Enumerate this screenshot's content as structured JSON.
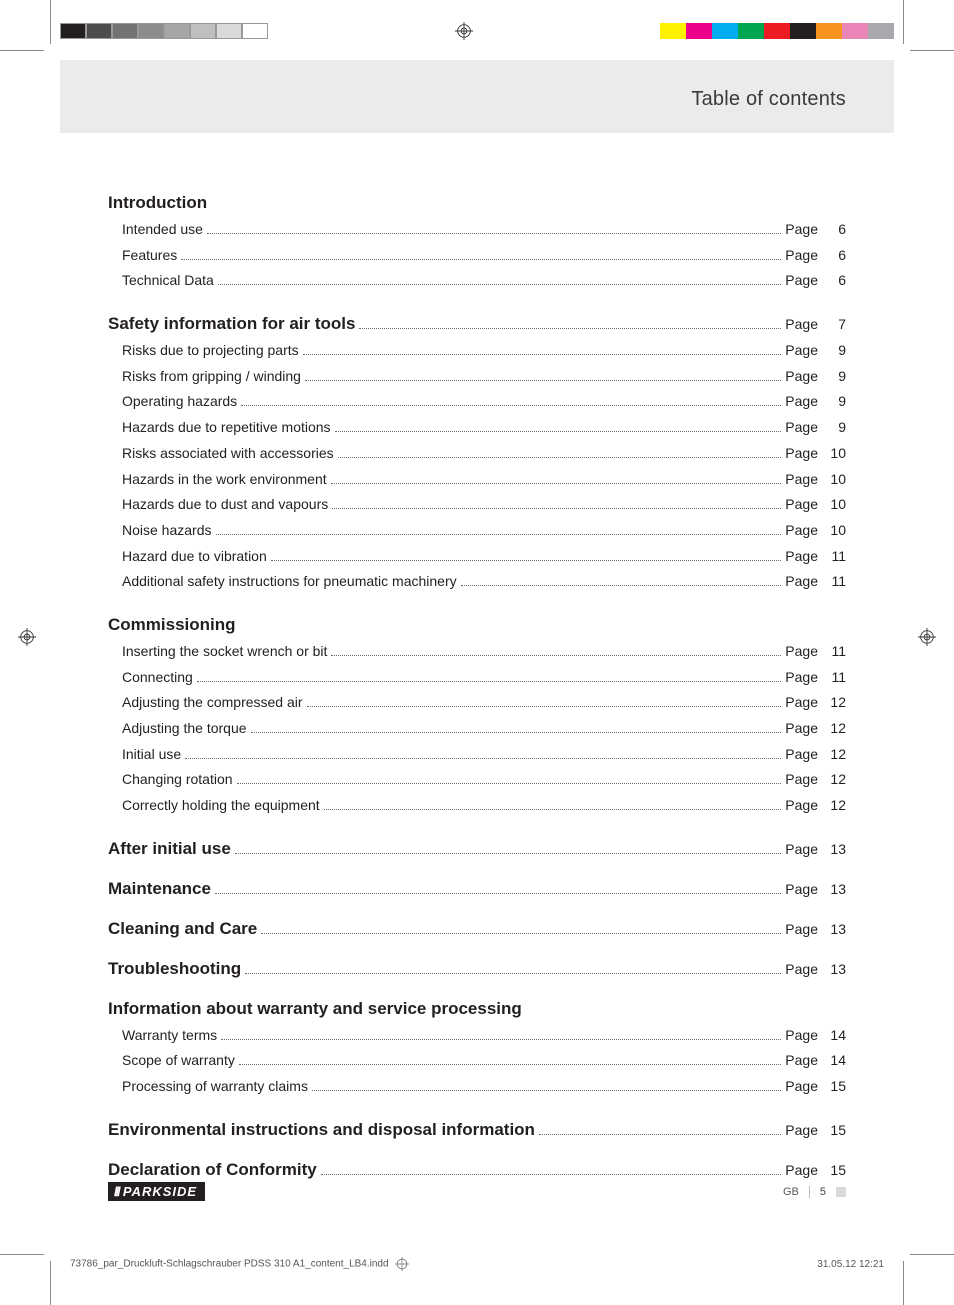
{
  "header": {
    "title": "Table of contents"
  },
  "page_word": "Page",
  "sections": [
    {
      "title": "Introduction",
      "page": null,
      "entries": [
        {
          "title": "Intended use",
          "page": "6"
        },
        {
          "title": "Features",
          "page": "6"
        },
        {
          "title": "Technical Data",
          "page": "6"
        }
      ]
    },
    {
      "title": "Safety information for air tools",
      "page": "7",
      "entries": [
        {
          "title": "Risks due to projecting parts",
          "page": "9"
        },
        {
          "title": "Risks from gripping / winding",
          "page": "9"
        },
        {
          "title": "Operating hazards",
          "page": "9"
        },
        {
          "title": "Hazards due to repetitive motions",
          "page": "9"
        },
        {
          "title": "Risks associated with accessories",
          "page": "10"
        },
        {
          "title": "Hazards in the work environment",
          "page": "10"
        },
        {
          "title": "Hazards due to dust and vapours",
          "page": "10"
        },
        {
          "title": "Noise hazards",
          "page": "10"
        },
        {
          "title": "Hazard due to vibration",
          "page": "11"
        },
        {
          "title": "Additional safety instructions for pneumatic machinery",
          "page": "11"
        }
      ]
    },
    {
      "title": "Commissioning",
      "page": null,
      "entries": [
        {
          "title": "Inserting the socket wrench or bit",
          "page": "11"
        },
        {
          "title": "Connecting",
          "page": "11"
        },
        {
          "title": "Adjusting the compressed air",
          "page": "12"
        },
        {
          "title": "Adjusting the torque",
          "page": "12"
        },
        {
          "title": "Initial use",
          "page": "12"
        },
        {
          "title": "Changing rotation",
          "page": "12"
        },
        {
          "title": "Correctly holding the equipment",
          "page": "12"
        }
      ]
    },
    {
      "title": "After initial use",
      "page": "13",
      "entries": []
    },
    {
      "title": "Maintenance",
      "page": "13",
      "entries": []
    },
    {
      "title": "Cleaning and Care",
      "page": "13",
      "entries": []
    },
    {
      "title": "Troubleshooting",
      "page": "13",
      "entries": []
    },
    {
      "title": "Information about warranty and service processing",
      "page": null,
      "entries": [
        {
          "title": "Warranty terms",
          "page": "14"
        },
        {
          "title": "Scope of warranty",
          "page": "14"
        },
        {
          "title": "Processing of warranty claims",
          "page": "15"
        }
      ]
    },
    {
      "title": "Environmental instructions and disposal information",
      "page": "15",
      "entries": []
    },
    {
      "title": "Declaration of Conformity",
      "page": "15",
      "entries": []
    }
  ],
  "footer": {
    "brand": "PARKSIDE",
    "lang": "GB",
    "page_number": "5"
  },
  "imprint": {
    "file": "73786_par_Druckluft-Schlagschrauber PDSS 310 A1_content_LB4.indd",
    "datetime": "31.05.12   12:21"
  },
  "colorbar_left": [
    "#231f20",
    "#4d4d4d",
    "#737373",
    "#8c8c8c",
    "#a6a6a6",
    "#bfbfbf",
    "#d9d9d9",
    "#ffffff"
  ],
  "colorbar_right": [
    "#fff200",
    "#ec008c",
    "#00aeef",
    "#00a651",
    "#ed1c24",
    "#231f20",
    "#f7941d",
    "#ea86b7",
    "#a7a9ac"
  ]
}
